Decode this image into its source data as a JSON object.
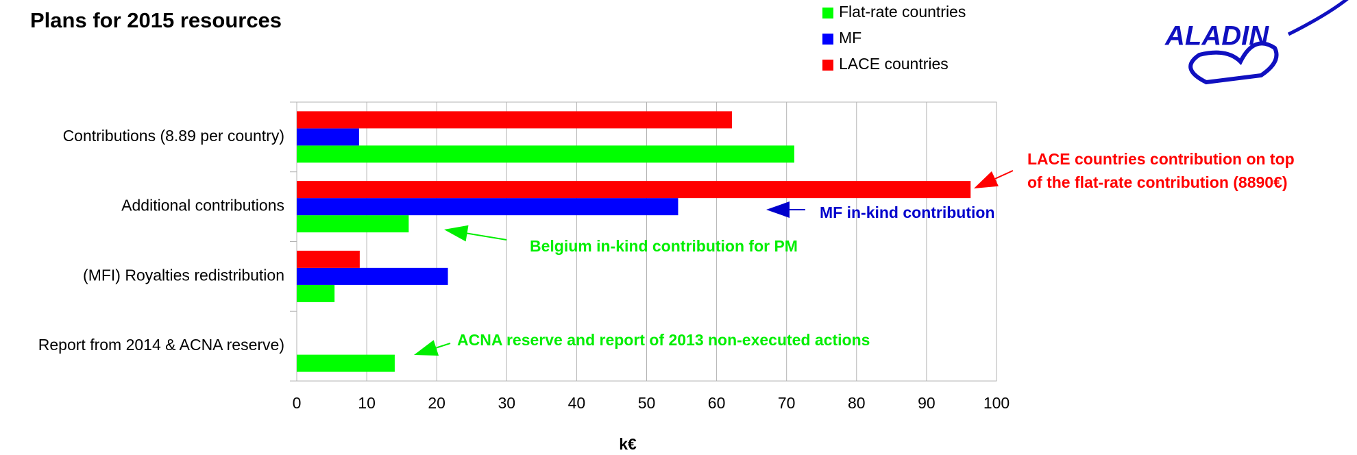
{
  "chart_data": {
    "type": "bar",
    "orientation": "horizontal",
    "title": "Plans for 2015 resources",
    "x_label": "k€",
    "logo_text": "ALADIN",
    "categories": [
      "Contributions (8.89 per country)",
      "Additional contributions",
      "(MFI) Royalties redistribution",
      "Report from 2014 & ACNA reserve)"
    ],
    "series": [
      {
        "name": "Flat-rate countries",
        "color": "#00ff00",
        "values": [
          71.1,
          16,
          5.4,
          14
        ]
      },
      {
        "name": "MF",
        "color": "#0000ff",
        "values": [
          8.9,
          54.5,
          21.6,
          null
        ]
      },
      {
        "name": "LACE countries",
        "color": "#ff0000",
        "values": [
          62.2,
          96.3,
          9,
          null
        ]
      }
    ],
    "xlim": [
      0,
      100
    ],
    "xticks": [
      0,
      10,
      20,
      30,
      40,
      50,
      60,
      70,
      80,
      90,
      100
    ],
    "grid": true,
    "legend": "top",
    "annotations": [
      {
        "lines": [
          "LACE countries  contribution on top",
          "of the flat-rate contribution (8890€)"
        ],
        "color": "#ff0000"
      },
      {
        "lines": [
          "MF in-kind contribution"
        ],
        "color": "#0000cc"
      },
      {
        "lines": [
          "Belgium in-kind contribution for PM"
        ],
        "color": "#00ee00"
      },
      {
        "lines": [
          "ACNA reserve and report of 2013 non-executed actions"
        ],
        "color": "#00ee00"
      }
    ]
  }
}
